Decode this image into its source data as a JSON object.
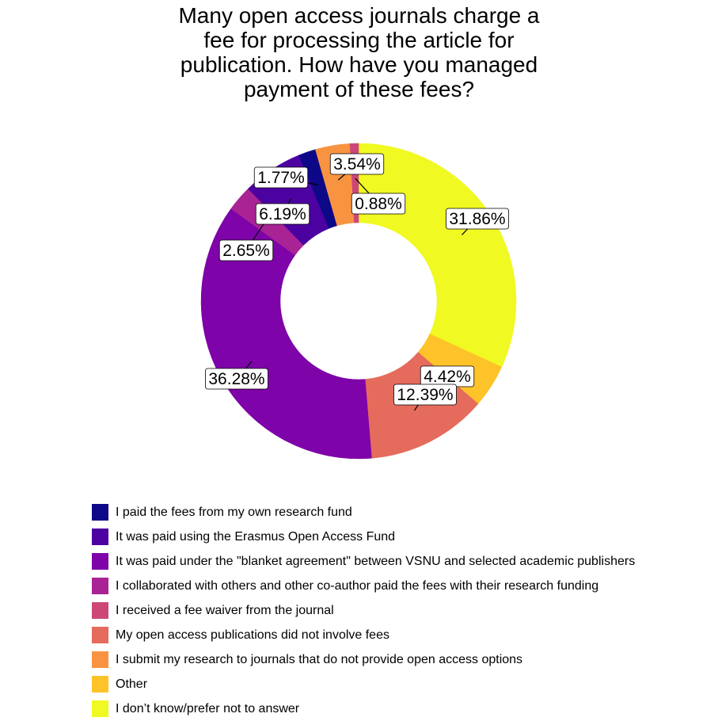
{
  "chart_data": {
    "type": "pie",
    "donut": true,
    "title_lines": [
      "Many open access journals charge a",
      "fee for processing the article for",
      "publication. How have you managed",
      "payment of these fees?"
    ],
    "legend_position": "bottom",
    "slices": [
      {
        "label": "I paid the fees from my own research fund",
        "value": 1.77,
        "display": "1.77%",
        "color": "#0d0887"
      },
      {
        "label": "It was paid using the Erasmus Open Access Fund",
        "value": 6.19,
        "display": "6.19%",
        "color": "#5302a3"
      },
      {
        "label": "It was paid under the \"blanket agreement\" between VSNU and selected academic publishers",
        "value": 36.28,
        "display": "36.28%",
        "color": "#8b0aa5"
      },
      {
        "label": "I collaborated with others and other co-author paid the fees with their research funding",
        "value": 2.65,
        "display": "2.65%",
        "color": "#b83289"
      },
      {
        "label": "I received a fee waiver from the journal",
        "value": 0.88,
        "display": "0.88%",
        "color": "#db5c68"
      },
      {
        "label": "My open access publications did not involve fees",
        "value": 12.39,
        "display": "12.39%",
        "color": "#f48849"
      },
      {
        "label": "I submit my research to journals that do not provide open access options",
        "value": 3.54,
        "display": "3.54%",
        "color": "#febc2a"
      },
      {
        "label": "Other",
        "value": 4.42,
        "display": "4.42%",
        "color": "#f0f921"
      },
      {
        "label": "I don’t know/prefer not to answer",
        "value": 31.86,
        "display": "31.86%",
        "color": "#f0f921"
      }
    ]
  },
  "colors": {
    "own_fund": "#0d0887",
    "erasmus_fund": "#4c02a1",
    "blanket_agreement": "#7e03a8",
    "co_author": "#a92395",
    "fee_waiver": "#cc4778",
    "no_fees": "#e56b5d",
    "no_oa_journals": "#f89441",
    "other": "#fdc328",
    "dont_know": "#f0f921"
  }
}
